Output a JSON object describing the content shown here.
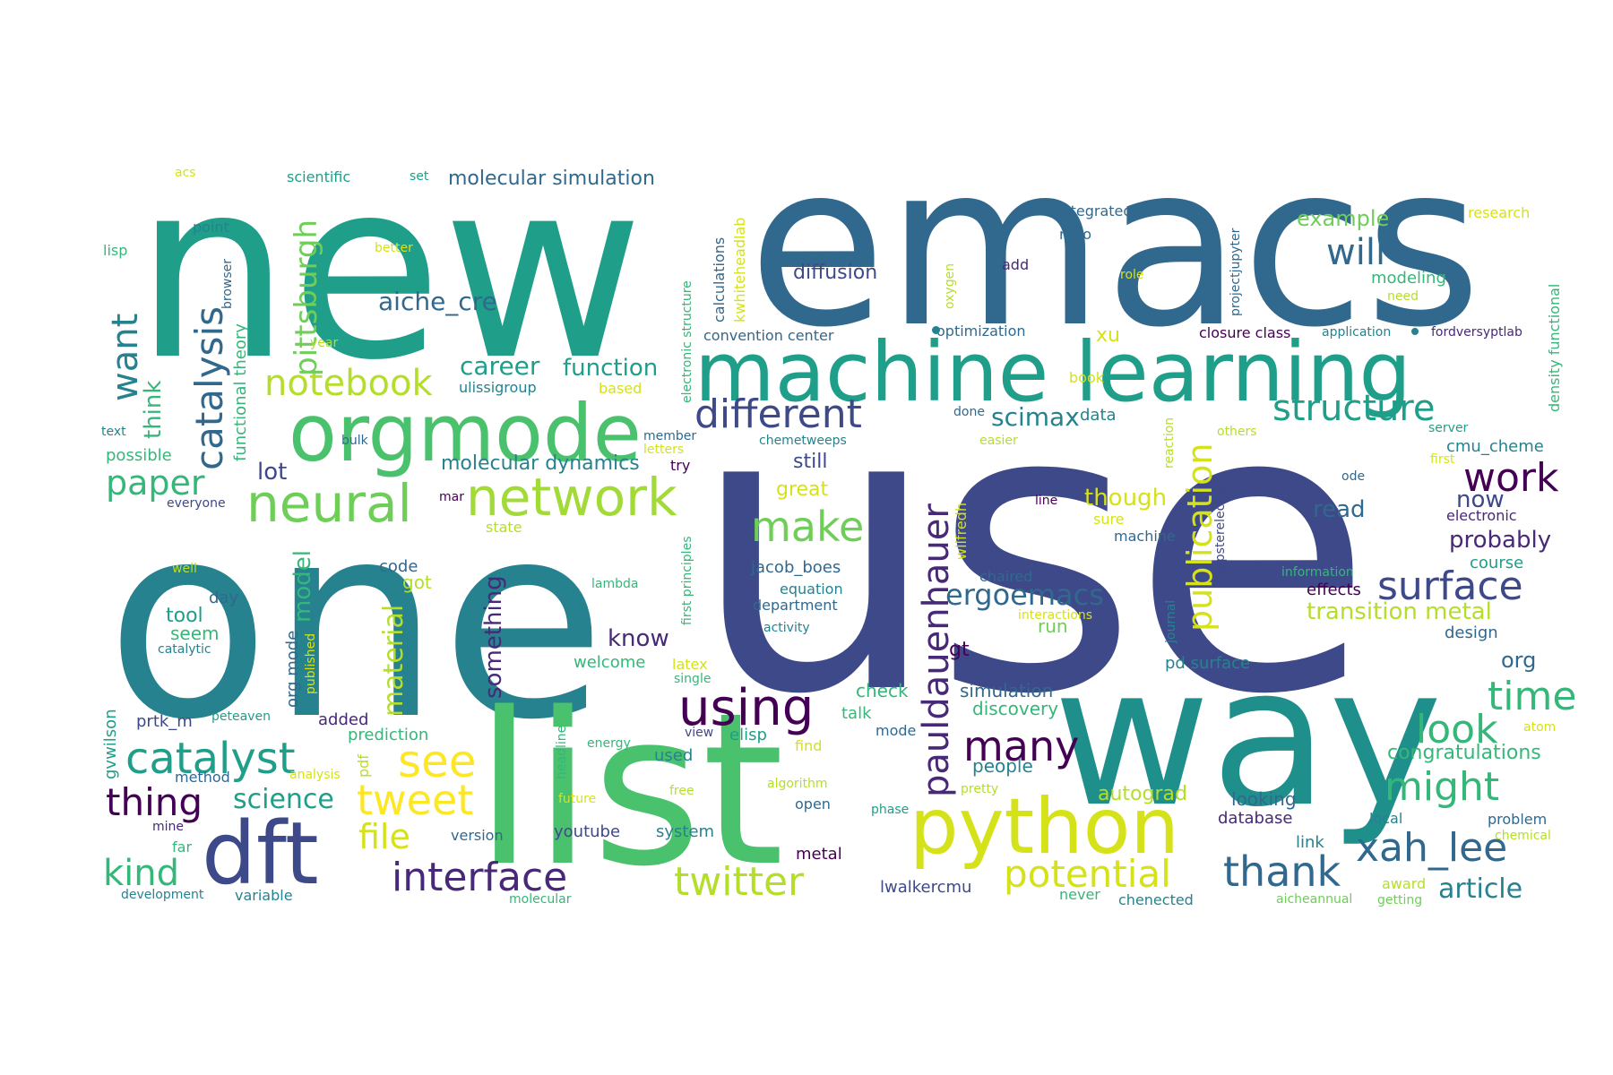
{
  "palette": {
    "dark_purple": "#440154",
    "purple": "#482878",
    "indigo": "#3e4989",
    "blue": "#31688e",
    "teal": "#26828e",
    "green_teal": "#1f9e89",
    "green": "#35b779",
    "light_green": "#6ece58",
    "lime": "#b5de2b",
    "yellow": "#fde725"
  },
  "words": {
    "use": "use",
    "new": "new",
    "emacs": "emacs",
    "one": "one",
    "list": "list",
    "way": "way",
    "machine_learning": "machine learning",
    "orgmode": "orgmode",
    "python": "python",
    "dft": "dft",
    "neural": "neural",
    "network": "network",
    "catalyst": "catalyst",
    "different": "different",
    "make": "make",
    "using": "using",
    "many": "many",
    "tweet": "tweet",
    "see": "see",
    "interface": "interface",
    "twitter": "twitter",
    "potential": "potential",
    "thank": "thank",
    "xah_lee": "xah_lee",
    "surface": "surface",
    "structure": "structure",
    "work": "work",
    "time": "time",
    "look": "look",
    "might": "might",
    "notebook": "notebook",
    "paper": "paper",
    "thing": "thing",
    "kind": "kind",
    "science": "science",
    "file": "file",
    "will": "will",
    "ergoemacs": "ergoemacs",
    "publication": "publication",
    "pauldauenhauer": "pauldauenhauer",
    "catalysis": "catalysis",
    "pittsburgh": "pittsburgh",
    "want": "want",
    "material": "material",
    "model": "model",
    "something": "something",
    "career": "career",
    "function": "function",
    "aiche_cre": "aiche_cre",
    "scimax": "scimax",
    "transition_metal": "transition metal",
    "probably": "probably",
    "now": "now",
    "though": "though",
    "xu": "xu",
    "lot": "lot",
    "read": "read",
    "example": "example",
    "know": "know",
    "diffusion": "diffusion",
    "molecular_simulation": "molecular simulation",
    "molecular_dynamics": "molecular dynamics",
    "congratulations": "congratulations",
    "article": "article",
    "still": "still",
    "great": "great",
    "autograd": "autograd",
    "org": "org",
    "tool": "tool",
    "seem": "seem",
    "got": "got",
    "day": "day",
    "code": "code",
    "run": "run",
    "gt": "gt",
    "check": "check",
    "discovery": "discovery",
    "simulation": "simulation",
    "people": "people",
    "looking": "looking",
    "database": "database",
    "link": "link",
    "design": "design",
    "course": "course",
    "effects": "effects",
    "modeling": "modeling",
    "cmu_cheme": "cmu_cheme",
    "prediction": "prediction",
    "elisp": "elisp",
    "added": "added",
    "talk": "talk",
    "used": "used",
    "metal": "metal",
    "lwalkercmu": "lwalkercmu",
    "youtube": "youtube",
    "system": "system",
    "welcome": "welcome",
    "think": "think",
    "possible": "possible",
    "functional_theory": "functional theory",
    "kwhiteheadlab": "kwhiteheadlab",
    "calculations": "calculations",
    "electronic_structure": "electronic structure",
    "first_principles": "first principles",
    "hipsterelectron": "hipsterelectron",
    "projectjupyter": "projectjupyter",
    "density_functional": "density functional",
    "fordversyptlab": "fordversyptlab",
    "application": "application",
    "closure_class": "closure class",
    "optimization": "optimization",
    "convention_center": "convention center",
    "integrated": "integrated",
    "repo": "repo",
    "add": "add",
    "role": "role",
    "need": "need",
    "research": "research",
    "server": "server",
    "first": "first",
    "ode": "ode",
    "electronic": "electronic",
    "information": "information",
    "interactions": "interactions",
    "chaired": "chaired",
    "journal": "journal",
    "reaction": "reaction",
    "others": "others",
    "easier": "easier",
    "done": "done",
    "data": "data",
    "book": "book",
    "machine": "machine",
    "sure": "sure",
    "line": "line",
    "wilfredh": "wilfredh",
    "jacob_boes": "jacob_boes",
    "equation": "equation",
    "department": "department",
    "activity": "activity",
    "chemetweeps": "chemetweeps",
    "member": "member",
    "letters": "letters",
    "try": "try",
    "mar": "mar",
    "state": "state",
    "based": "based",
    "ulissigroup": "ulissigroup",
    "bulk": "bulk",
    "everyone": "everyone",
    "text": "text",
    "lisp": "lisp",
    "point": "point",
    "acs": "acs",
    "scientific": "scientific",
    "set": "set",
    "better": "better",
    "browser": "browser",
    "year": "year",
    "oxygen": "oxygen",
    "well": "well",
    "catalytic": "catalytic",
    "lambda": "lambda",
    "org_mode": "org mode",
    "published": "published",
    "pdf": "pdf",
    "prtk_m": "prtk_m",
    "peteaven": "peteaven",
    "method": "method",
    "analysis": "analysis",
    "gvwilson": "gvwilson",
    "mine": "mine",
    "far": "far",
    "development": "development",
    "variable": "variable",
    "molecular": "molecular",
    "version": "version",
    "future": "future",
    "free": "free",
    "energy": "energy",
    "headline": "headline",
    "algorithm": "algorithm",
    "latex": "latex",
    "single": "single",
    "view": "view",
    "mode": "mode",
    "open": "open",
    "phase": "phase",
    "find": "find",
    "pretty": "pretty",
    "never": "never",
    "chenected": "chenected",
    "award": "award",
    "aicheannual": "aicheannual",
    "getting": "getting",
    "chemical": "chemical",
    "problem": "problem",
    "local": "local",
    "atom": "atom",
    "pd_surface": "pd surface"
  }
}
